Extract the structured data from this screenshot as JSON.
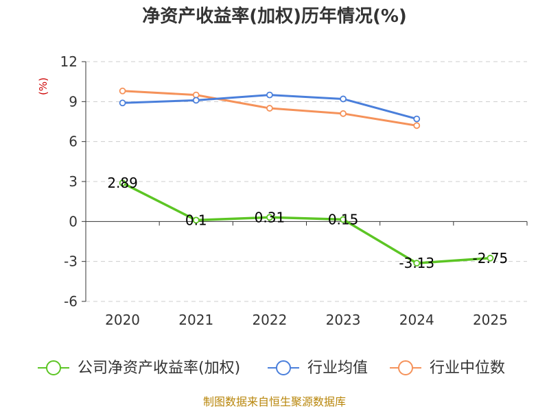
{
  "chart_data": {
    "type": "line",
    "title": "净资产收益率(加权)历年情况(%)",
    "ylabel": "(%)",
    "xlabel": "",
    "categories": [
      "2020",
      "2021",
      "2022",
      "2023",
      "2024",
      "2025"
    ],
    "ylim": [
      -6,
      12
    ],
    "yticks": [
      "12",
      "9",
      "6",
      "3",
      "0",
      "-3",
      "-6"
    ],
    "grid": true,
    "legend_position": "bottom",
    "series": [
      {
        "name": "公司净资产收益率(加权)",
        "color": "#5cc524",
        "values": [
          2.89,
          0.1,
          0.31,
          0.15,
          -3.13,
          -2.75
        ],
        "labels": [
          "2.89",
          "0.1",
          "0.31",
          "0.15",
          "-3.13",
          "-2.75"
        ]
      },
      {
        "name": "行业均值",
        "color": "#4a7fdb",
        "values": [
          8.9,
          9.1,
          9.5,
          9.2,
          7.7,
          null
        ]
      },
      {
        "name": "行业中位数",
        "color": "#f5925a",
        "values": [
          9.8,
          9.5,
          8.5,
          8.1,
          7.2,
          null
        ]
      }
    ],
    "source": "制图数据来自恒生聚源数据库"
  }
}
